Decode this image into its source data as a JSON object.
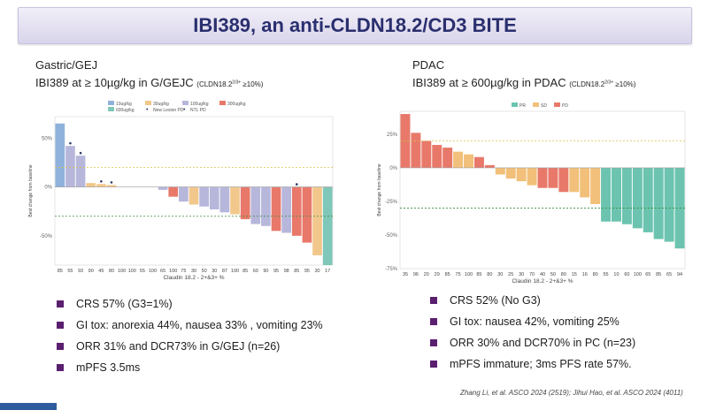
{
  "title": "IBI389, an anti-CLDN18.2/CD3 BITE",
  "left_panel": {
    "heading": "Gastric/GEJ",
    "subtitle_main": "IBI389 at ≥ 10µg/kg in G/GEJC",
    "subtitle_paren_a": "(CLDN18.2",
    "subtitle_sup": "2/3+",
    "subtitle_paren_b": " ≥10%)",
    "bullets": [
      "CRS 57% (G3=1%)",
      "GI tox: anorexia 44%, nausea 33% , vomiting 23%",
      "ORR 31% and DCR73% in G/GEJ (n=26)",
      "mPFS 3.5ms"
    ]
  },
  "right_panel": {
    "heading": "PDAC",
    "subtitle_main": "IBI389 at ≥ 600µg/kg in PDAC",
    "subtitle_paren_a": "(CLDN18.2",
    "subtitle_sup": "2/3+",
    "subtitle_paren_b": " ≥10%)",
    "bullets": [
      "CRS 52% (No G3)",
      "GI tox: nausea 42%, vomiting 25%",
      "ORR 30% and DCR70% in PC (n=23)",
      "mPFS immature; 3ms PFS rate 57%."
    ]
  },
  "citation": "Zhang Li, et al. ASCO 2024 (2519); Jihui Hao, et al. ASCO 2024 (4011)",
  "colors": {
    "title_text": "#2a2f6e",
    "bullet": "#5b1f70",
    "dose_10": "#8fb2dc",
    "dose_30": "#f2c78c",
    "dose_100": "#b7b7dc",
    "dose_300": "#e8796a",
    "dose_600": "#7fc7b8",
    "pr": "#6cc4b0",
    "sd": "#f2c07a",
    "pd": "#e8796a",
    "pd_line": "#d9c64a",
    "pr_line": "#3c8a3c",
    "markers": "#2b3a67"
  },
  "chart_data": [
    {
      "type": "bar",
      "ylabel": "Best change from baseline",
      "xlabel": "Claudin 18.2 - 2+&3+ %",
      "ylim": [
        -80,
        72
      ],
      "yticks": [
        50,
        0,
        -50
      ],
      "ytick_labels": [
        "50%",
        "0%",
        "-50%"
      ],
      "reference_lines": [
        20,
        -30
      ],
      "legend": {
        "position": "top",
        "entries": [
          {
            "label": "10ug/kg",
            "color": "dose_10"
          },
          {
            "label": "30ug/kg",
            "color": "dose_30"
          },
          {
            "label": "100ug/kg",
            "color": "dose_100"
          },
          {
            "label": "300ug/kg",
            "color": "dose_300"
          },
          {
            "label": "600ug/kg",
            "color": "dose_600"
          },
          {
            "label": "New Lesion PD",
            "marker": "•"
          },
          {
            "label": "NTL PD",
            "marker": "•"
          }
        ]
      },
      "categories": [
        "85",
        "55",
        "93",
        "90",
        "45",
        "80",
        "100",
        "100",
        "55",
        "100",
        "65",
        "100",
        "75",
        "30",
        "50",
        "30",
        "87",
        "100",
        "85",
        "60",
        "90",
        "95",
        "98",
        "85",
        "95",
        "30",
        "17"
      ],
      "values": [
        65,
        42,
        32,
        4,
        3,
        2,
        0,
        0,
        0,
        0,
        -3,
        -10,
        -15,
        -18,
        -20,
        -23,
        -26,
        -28,
        -33,
        -38,
        -40,
        -45,
        -47,
        -50,
        -57,
        -70,
        -80
      ],
      "dose_group": [
        "10",
        "100",
        "100",
        "30",
        "30",
        "30",
        "",
        "",
        "",
        "",
        "100",
        "300",
        "100",
        "30",
        "100",
        "100",
        "100",
        "30",
        "300",
        "100",
        "100",
        "300",
        "100",
        "300",
        "300",
        "30",
        "600"
      ],
      "markers_on_bars": [
        1,
        2,
        4,
        5,
        23
      ]
    },
    {
      "type": "bar",
      "ylabel": "Best change from baseline",
      "xlabel": "Claudin 18.2 - 2+&3+ %",
      "ylim": [
        -75,
        42
      ],
      "yticks": [
        25,
        0,
        -25,
        -50,
        -75
      ],
      "ytick_labels": [
        "25%",
        "0%",
        "-25%",
        "-50%",
        "-75%"
      ],
      "reference_lines": [
        20,
        -30
      ],
      "legend": {
        "position": "top",
        "entries": [
          {
            "label": "PR",
            "color": "pr"
          },
          {
            "label": "SD",
            "color": "sd"
          },
          {
            "label": "PD",
            "color": "pd"
          }
        ]
      },
      "categories": [
        "35",
        "96",
        "20",
        "29",
        "85",
        "75",
        "100",
        "85",
        "80",
        "30",
        "25",
        "30",
        "70",
        "40",
        "50",
        "80",
        "15",
        "16",
        "80",
        "55",
        "10",
        "60",
        "100",
        "65",
        "85",
        "65",
        "94"
      ],
      "values": [
        40,
        26,
        20,
        17,
        15,
        12,
        10,
        8,
        2,
        -5,
        -8,
        -10,
        -13,
        -15,
        -15,
        -18,
        -18,
        -22,
        -27,
        -40,
        -40,
        -42,
        -45,
        -48,
        -53,
        -55,
        -60
      ],
      "response": [
        "PD",
        "PD",
        "PD",
        "PD",
        "PD",
        "SD",
        "SD",
        "PD",
        "PD",
        "SD",
        "SD",
        "SD",
        "SD",
        "PD",
        "PD",
        "PD",
        "SD",
        "SD",
        "SD",
        "PR",
        "PR",
        "PR",
        "PR",
        "PR",
        "PR",
        "PR",
        "PR"
      ]
    }
  ]
}
